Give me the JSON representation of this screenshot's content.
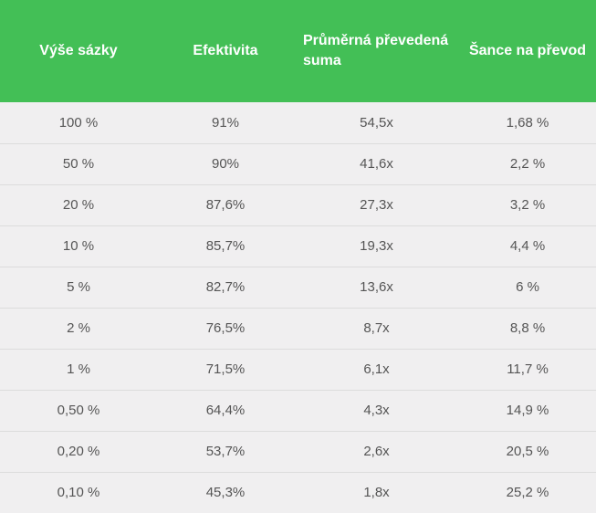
{
  "table": {
    "headers": [
      "Výše sázky",
      "Efektivita",
      "Průměrná převedená suma",
      "Šance na převod"
    ],
    "rows": [
      [
        "100 %",
        "91%",
        "54,5x",
        "1,68 %"
      ],
      [
        "50 %",
        "90%",
        "41,6x",
        "2,2 %"
      ],
      [
        "20 %",
        "87,6%",
        "27,3x",
        "3,2 %"
      ],
      [
        "10 %",
        "85,7%",
        "19,3x",
        "4,4 %"
      ],
      [
        "5 %",
        "82,7%",
        "13,6x",
        "6 %"
      ],
      [
        "2 %",
        "76,5%",
        "8,7x",
        "8,8 %"
      ],
      [
        "1 %",
        "71,5%",
        "6,1x",
        "11,7 %"
      ],
      [
        "0,50 %",
        "64,4%",
        "4,3x",
        "14,9 %"
      ],
      [
        "0,20 %",
        "53,7%",
        "2,6x",
        "20,5 %"
      ],
      [
        "0,10 %",
        "45,3%",
        "1,8x",
        "25,2 %"
      ]
    ]
  },
  "colors": {
    "header_background": "#43bf56",
    "header_text": "#ffffff",
    "row_background": "#f0eff0",
    "cell_text": "#555555",
    "row_divider": "#dcdcdc"
  }
}
